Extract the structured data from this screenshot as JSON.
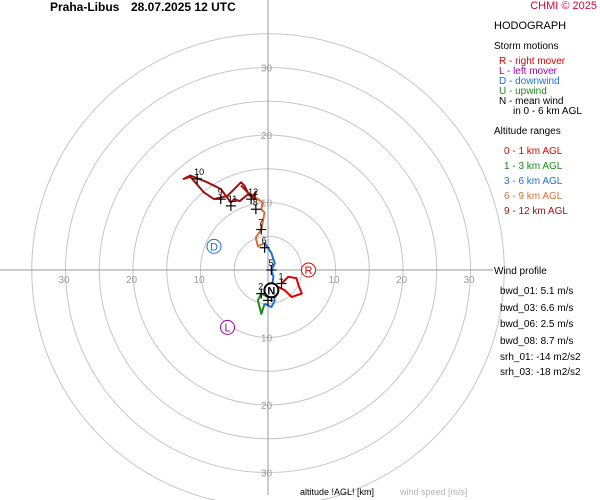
{
  "header": {
    "station": "Praha-Libus",
    "datetime": "28.07.2025 12 UTC",
    "credit": "CHMI © 2025"
  },
  "sidebar": {
    "title": "HODOGRAPH",
    "storm_title": "Storm motions",
    "storm_items": [
      {
        "text": "R - right mover",
        "color": "#e00000"
      },
      {
        "text": "L - left mover",
        "color": "#a000b0"
      },
      {
        "text": "D - downwind",
        "color": "#1f6fd6"
      },
      {
        "text": "U - upwind",
        "color": "#1a8a1a"
      },
      {
        "text": "N - mean wind",
        "color": "#000000"
      },
      {
        "text": "in 0 - 6 km AGL",
        "color": "#000000"
      }
    ],
    "altitude_title": "Altitude ranges",
    "altitude_items": [
      {
        "text": "0 - 1 km AGL",
        "color": "#e00000"
      },
      {
        "text": "1 - 3 km AGL",
        "color": "#1a8a1a"
      },
      {
        "text": "3 - 6 km AGL",
        "color": "#1f6fd6"
      },
      {
        "text": "6 - 9 km AGL",
        "color": "#d2713c"
      },
      {
        "text": "9 - 12 km AGL",
        "color": "#a01010"
      }
    ],
    "profile_title": "Wind profile",
    "profile_items": [
      "bwd_01: 5.1 m/s",
      "bwd_03: 6.6 m/s",
      "bwd_06: 2.5 m/s",
      "bwd_08: 8.7 m/s",
      "srh_01: -14 m2/s2",
      "srh_03: -18 m2/s2"
    ]
  },
  "footer": {
    "xlabel": "altitude !AGL! [km]",
    "ylabel": "wind speed [m/s]"
  },
  "chart_data": {
    "type": "line",
    "rings": [
      5,
      10,
      15,
      20,
      25,
      30,
      35
    ],
    "ring_labels": [
      "10",
      "20",
      "30"
    ],
    "grid": true,
    "series": [
      {
        "name": "0 - 1 km AGL",
        "color": "#e00000",
        "points": [
          [
            2,
            -2
          ],
          [
            3,
            -1
          ],
          [
            4.2,
            -1.2
          ],
          [
            4.5,
            -2.2
          ],
          [
            5,
            -3.5
          ],
          [
            3.5,
            -4
          ],
          [
            2.5,
            -3
          ],
          [
            1.5,
            -2.5
          ]
        ]
      },
      {
        "name": "1 - 3 km AGL",
        "color": "#1a8a1a",
        "points": [
          [
            1.5,
            -2.5
          ],
          [
            1,
            -3.5
          ],
          [
            0,
            -4
          ],
          [
            -1,
            -3.5
          ],
          [
            -1.5,
            -4.5
          ],
          [
            -1,
            -6.5
          ],
          [
            -0.5,
            -5
          ]
        ]
      },
      {
        "name": "3 - 6 km AGL",
        "color": "#1f6fd6",
        "points": [
          [
            -0.5,
            -5
          ],
          [
            0.5,
            -5.5
          ],
          [
            1,
            -4.5
          ],
          [
            0.5,
            -3
          ],
          [
            0.8,
            -1
          ],
          [
            0.5,
            0
          ],
          [
            1,
            1
          ],
          [
            0.5,
            2.5
          ],
          [
            0,
            3.3
          ],
          [
            -0.5,
            4
          ]
        ]
      },
      {
        "name": "6 - 9 km AGL",
        "color": "#d2713c",
        "points": [
          [
            -0.5,
            4
          ],
          [
            -1.5,
            3.5
          ],
          [
            -1.8,
            4.8
          ],
          [
            -1,
            6
          ],
          [
            -0.8,
            7
          ],
          [
            -0.5,
            8.5
          ],
          [
            -1,
            9
          ],
          [
            -0.8,
            10
          ],
          [
            -1.5,
            10.5
          ],
          [
            -3,
            11.5
          ]
        ]
      },
      {
        "name": "9 - 12 km AGL",
        "color": "#a01010",
        "points": [
          [
            -3,
            11.5
          ],
          [
            -2,
            10.5
          ],
          [
            -1.8,
            11.6
          ],
          [
            -2.3,
            10.8
          ],
          [
            -3,
            11.2
          ],
          [
            -4.2,
            10.2
          ],
          [
            -5,
            10.5
          ],
          [
            -5.5,
            10
          ],
          [
            -7,
            12
          ],
          [
            -9,
            13
          ],
          [
            -11.5,
            14
          ],
          [
            -12.5,
            13.5
          ],
          [
            -11.5,
            13.8
          ],
          [
            -9.5,
            11.5
          ],
          [
            -8,
            10.5
          ],
          [
            -6,
            11
          ],
          [
            -4,
            13
          ],
          [
            -3.5,
            12.5
          ],
          [
            -3,
            11.5
          ],
          [
            -4,
            12.5
          ]
        ]
      }
    ],
    "heights": [
      {
        "label": "1",
        "u": 2,
        "v": -2
      },
      {
        "label": "2",
        "u": -1,
        "v": -3.5
      },
      {
        "label": "3",
        "u": 0,
        "v": -4.5
      },
      {
        "label": "4",
        "u": 0.5,
        "v": -4
      },
      {
        "label": "5",
        "u": 0.5,
        "v": 0
      },
      {
        "label": "6",
        "u": -0.5,
        "v": 3.3
      },
      {
        "label": "7",
        "u": -1,
        "v": 6
      },
      {
        "label": "8",
        "u": -1.8,
        "v": 9
      },
      {
        "label": "9",
        "u": -7,
        "v": 10.5
      },
      {
        "label": "10",
        "u": -10.5,
        "v": 13.5
      },
      {
        "label": "11",
        "u": -5.5,
        "v": 9.5
      },
      {
        "label": "12",
        "u": -2.5,
        "v": 10.5
      }
    ],
    "storm_motions": [
      {
        "label": "R",
        "u": 6,
        "v": 0,
        "color": "#e00000"
      },
      {
        "label": "L",
        "u": -6,
        "v": -8.5,
        "color": "#a000b0"
      },
      {
        "label": "D",
        "u": -8,
        "v": 3.5,
        "color": "#1f6fd6"
      },
      {
        "label": "N",
        "u": 0.5,
        "v": -3,
        "color": "#000000"
      }
    ]
  }
}
